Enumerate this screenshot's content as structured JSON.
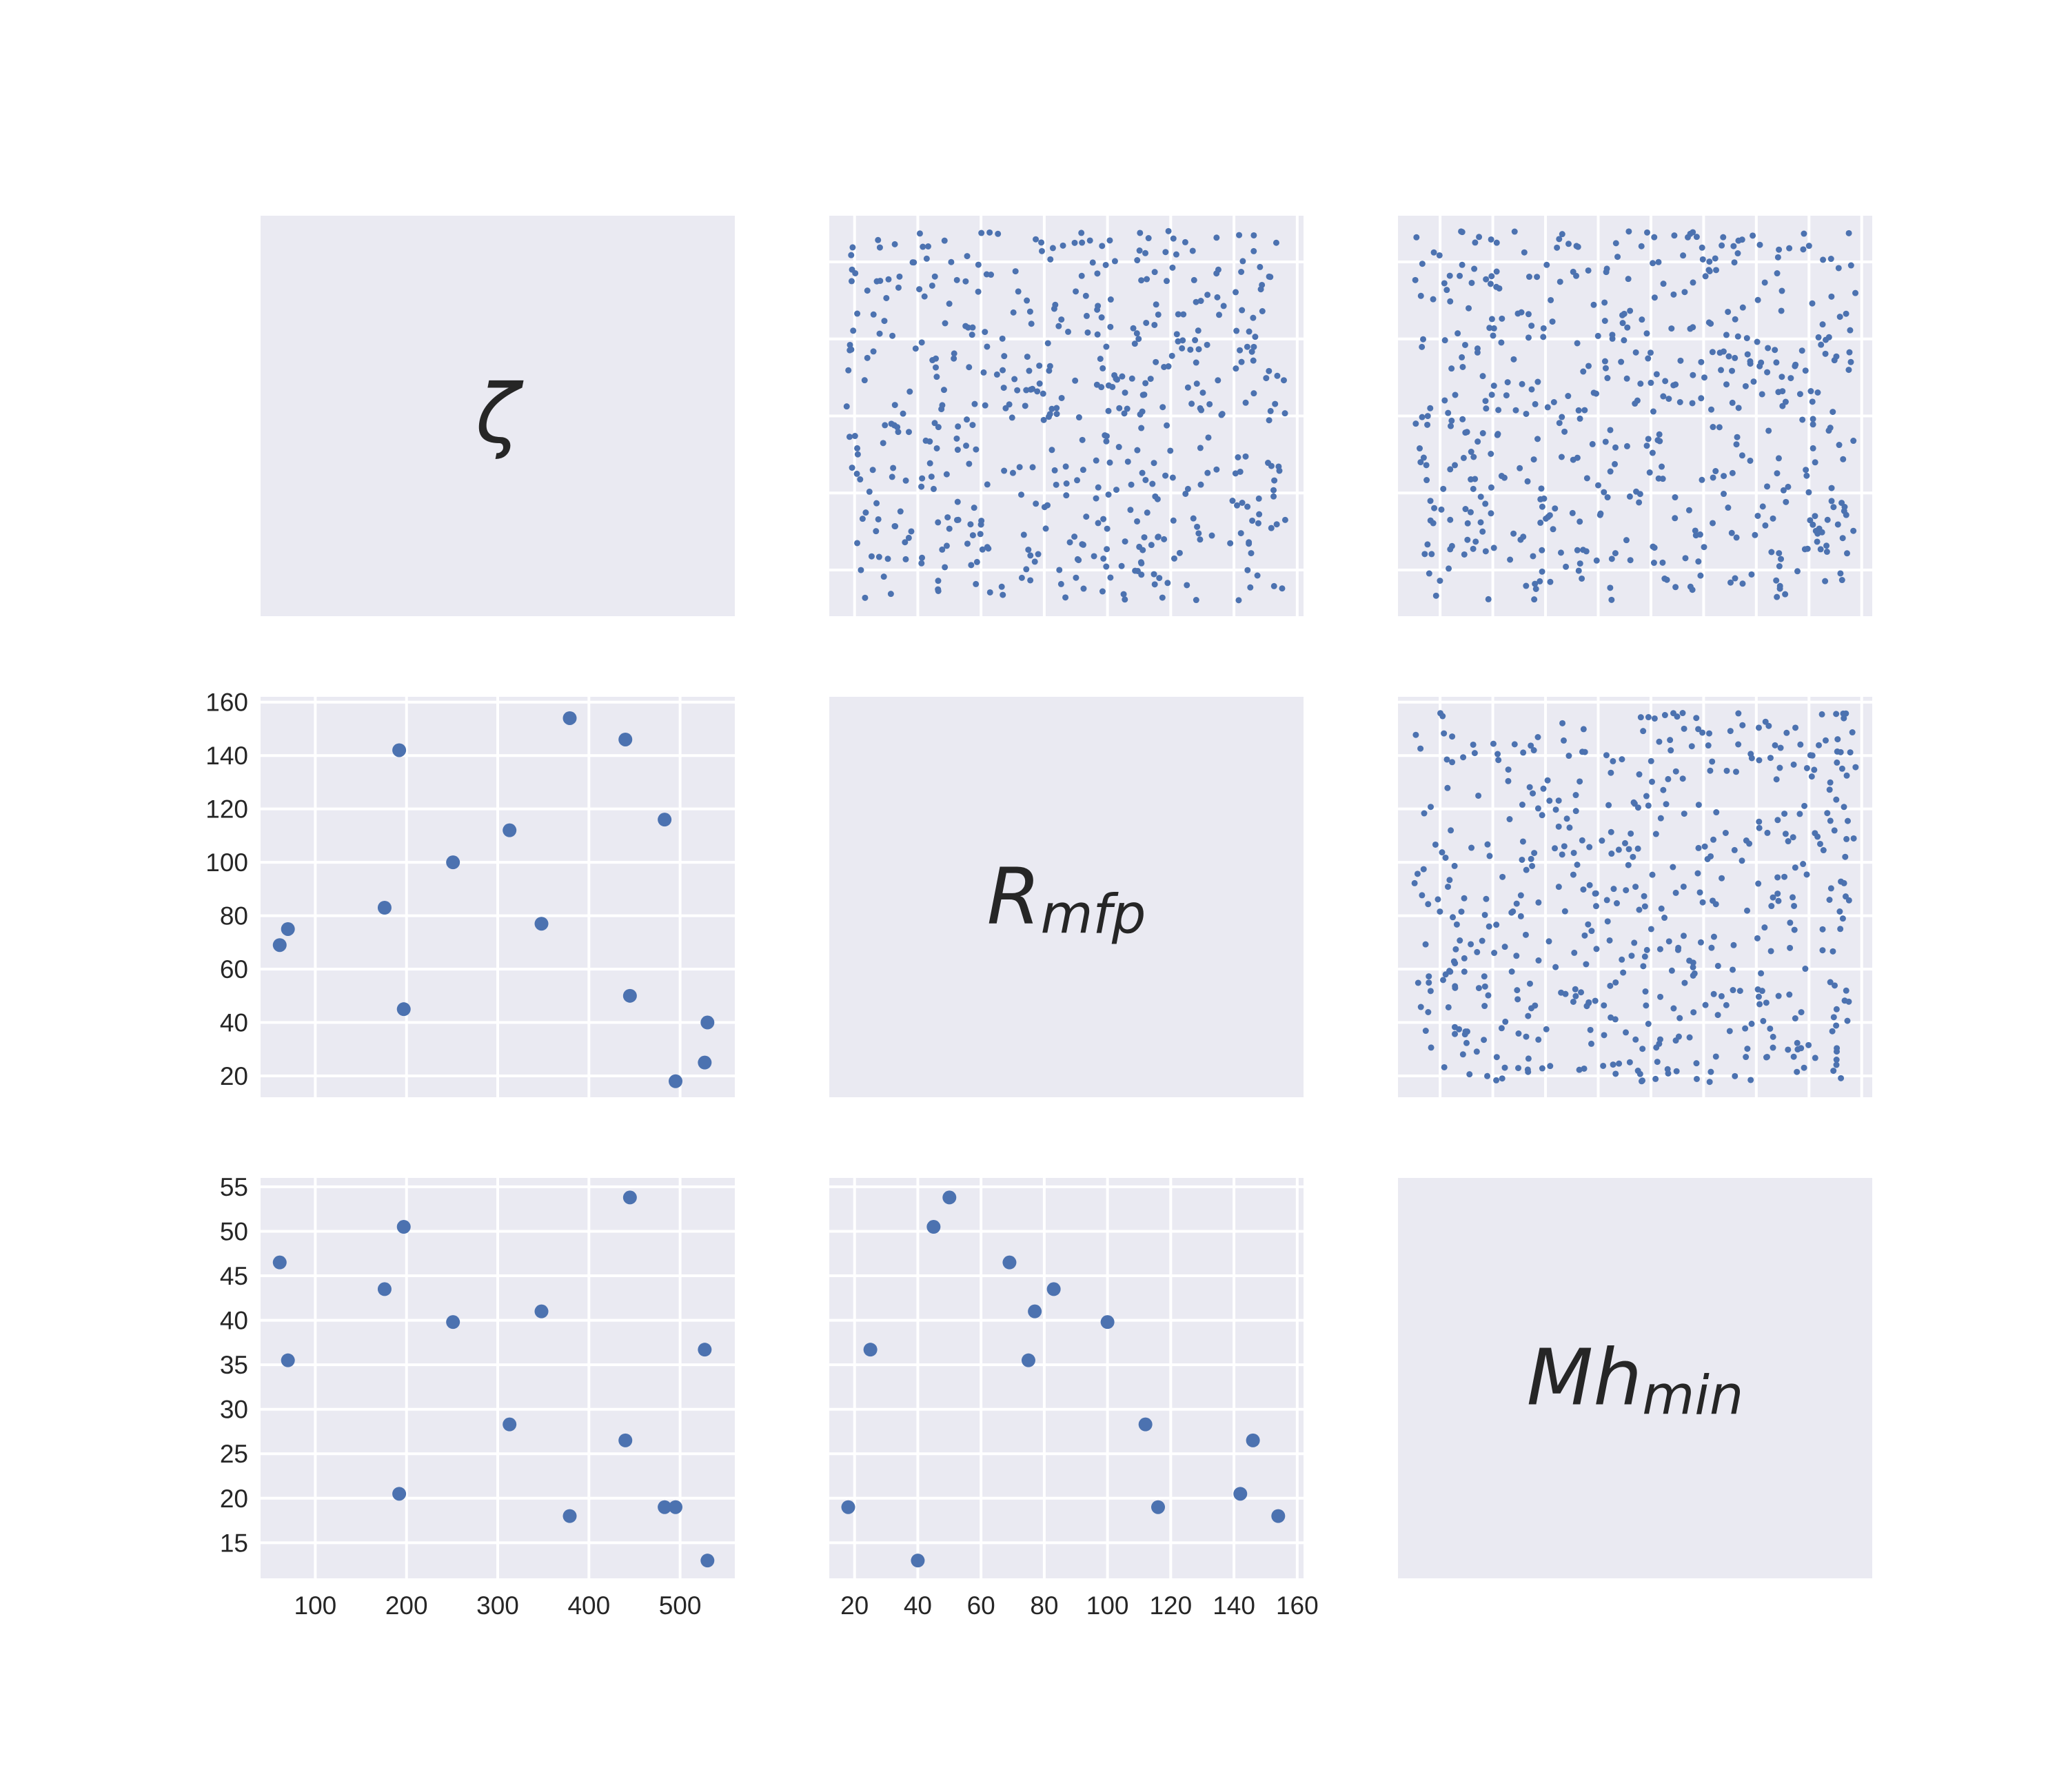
{
  "colors": {
    "panel": "#eaeaf2",
    "grid": "#ffffff",
    "marker": "#4c72b0",
    "text": "#262626"
  },
  "variables": [
    {
      "key": "zeta",
      "label": "ζ",
      "sub": ""
    },
    {
      "key": "rmfp",
      "label": "R",
      "sub": "mfp"
    },
    {
      "key": "mhmin",
      "label": "Mh",
      "sub": "min"
    }
  ],
  "chart_data": {
    "type": "scatter",
    "layout": "pairplot",
    "diagonal": "labels",
    "axes": {
      "zeta": {
        "range": [
          40,
          560
        ],
        "ticks": [
          100,
          200,
          300,
          400,
          500
        ]
      },
      "rmfp": {
        "range": [
          12,
          162
        ],
        "ticks": [
          20,
          40,
          60,
          80,
          100,
          120,
          140,
          160
        ]
      },
      "mhmin": {
        "range": [
          11,
          56
        ],
        "ticks": [
          15,
          20,
          25,
          30,
          35,
          40,
          45,
          50,
          55
        ]
      }
    },
    "lower": {
      "zeta": [
        61,
        70,
        176,
        192,
        197,
        251,
        313,
        348,
        379,
        440,
        445,
        483,
        495,
        527,
        530
      ],
      "rmfp": [
        69,
        75,
        83,
        142,
        45,
        100,
        112,
        77,
        154,
        146,
        50,
        116,
        18,
        25,
        40
      ],
      "mhmin": [
        46.5,
        35.5,
        43.5,
        20.5,
        50.5,
        39.8,
        28.3,
        41,
        18,
        26.5,
        53.8,
        19,
        19,
        36.7,
        13
      ]
    },
    "upper_samples_approx": 500
  }
}
